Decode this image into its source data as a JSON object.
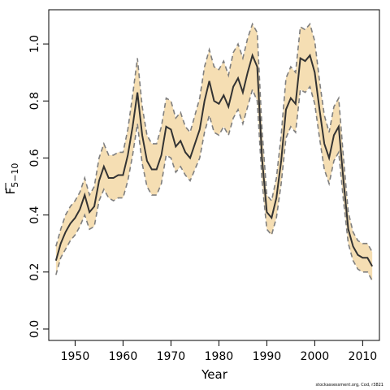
{
  "chart_data": {
    "type": "line",
    "xlabel": "Year",
    "ylabel": "F",
    "ylabel_bar": true,
    "ylabel_subscript": "5−10",
    "xlim": [
      1944.5,
      2013.5
    ],
    "ylim": [
      -0.04,
      1.12
    ],
    "xticks": [
      1950,
      1960,
      1970,
      1980,
      1990,
      2000,
      2010
    ],
    "yticks": [
      0.0,
      0.2,
      0.4,
      0.6,
      0.8,
      1.0
    ],
    "ytick_labels": [
      "0.0",
      "0.2",
      "0.4",
      "0.6",
      "0.8",
      "1.0"
    ],
    "band_color": "#f5deb3",
    "band_edge_color": "#7f7f7f",
    "line_color": "#333333",
    "x": [
      1946,
      1947,
      1948,
      1949,
      1950,
      1951,
      1952,
      1953,
      1954,
      1955,
      1956,
      1957,
      1958,
      1959,
      1960,
      1961,
      1962,
      1963,
      1964,
      1965,
      1966,
      1967,
      1968,
      1969,
      1970,
      1971,
      1972,
      1973,
      1974,
      1975,
      1976,
      1977,
      1978,
      1979,
      1980,
      1981,
      1982,
      1983,
      1984,
      1985,
      1986,
      1987,
      1988,
      1989,
      1990,
      1991,
      1992,
      1993,
      1994,
      1995,
      1996,
      1997,
      1998,
      1999,
      2000,
      2001,
      2002,
      2003,
      2004,
      2005,
      2006,
      2007,
      2008,
      2009,
      2010,
      2011,
      2012
    ],
    "series": [
      {
        "values": [
          0.24,
          0.3,
          0.34,
          0.37,
          0.39,
          0.42,
          0.47,
          0.41,
          0.43,
          0.52,
          0.57,
          0.53,
          0.53,
          0.54,
          0.54,
          0.61,
          0.71,
          0.83,
          0.68,
          0.59,
          0.56,
          0.56,
          0.61,
          0.71,
          0.7,
          0.64,
          0.66,
          0.62,
          0.6,
          0.65,
          0.7,
          0.8,
          0.87,
          0.8,
          0.79,
          0.82,
          0.78,
          0.85,
          0.88,
          0.83,
          0.9,
          0.96,
          0.92,
          0.6,
          0.41,
          0.39,
          0.46,
          0.59,
          0.77,
          0.81,
          0.79,
          0.95,
          0.94,
          0.96,
          0.9,
          0.77,
          0.65,
          0.6,
          0.68,
          0.71,
          0.52,
          0.35,
          0.29,
          0.26,
          0.25,
          0.25,
          0.22
        ],
        "lower": [
          0.19,
          0.25,
          0.28,
          0.31,
          0.33,
          0.36,
          0.4,
          0.35,
          0.36,
          0.45,
          0.49,
          0.46,
          0.45,
          0.46,
          0.46,
          0.52,
          0.61,
          0.72,
          0.58,
          0.5,
          0.47,
          0.47,
          0.51,
          0.61,
          0.6,
          0.55,
          0.57,
          0.54,
          0.52,
          0.56,
          0.6,
          0.69,
          0.75,
          0.69,
          0.68,
          0.71,
          0.68,
          0.74,
          0.77,
          0.72,
          0.78,
          0.84,
          0.8,
          0.52,
          0.35,
          0.33,
          0.39,
          0.51,
          0.67,
          0.71,
          0.69,
          0.84,
          0.83,
          0.85,
          0.79,
          0.67,
          0.56,
          0.51,
          0.59,
          0.62,
          0.45,
          0.3,
          0.24,
          0.21,
          0.2,
          0.2,
          0.17
        ],
        "upper": [
          0.29,
          0.35,
          0.4,
          0.43,
          0.45,
          0.48,
          0.53,
          0.47,
          0.5,
          0.6,
          0.65,
          0.61,
          0.61,
          0.62,
          0.62,
          0.7,
          0.82,
          0.95,
          0.78,
          0.68,
          0.65,
          0.65,
          0.71,
          0.81,
          0.8,
          0.74,
          0.76,
          0.71,
          0.69,
          0.75,
          0.81,
          0.92,
          0.98,
          0.92,
          0.91,
          0.94,
          0.89,
          0.97,
          1.0,
          0.95,
          1.02,
          1.07,
          1.04,
          0.7,
          0.47,
          0.45,
          0.53,
          0.68,
          0.88,
          0.92,
          0.9,
          1.06,
          1.05,
          1.07,
          1.01,
          0.87,
          0.75,
          0.69,
          0.78,
          0.81,
          0.6,
          0.41,
          0.34,
          0.31,
          0.3,
          0.3,
          0.27
        ]
      }
    ]
  },
  "credit": "stockassessment.org, Cod, r3821"
}
